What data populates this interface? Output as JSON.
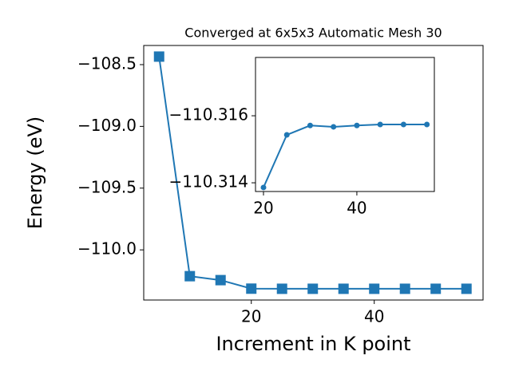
{
  "chart_data": [
    {
      "type": "line",
      "title": "Converged at 6x5x3 Automatic Mesh 30",
      "x_label": "Increment in K point",
      "y_label": "Energy (eV)",
      "marker": "square",
      "x": [
        5,
        10,
        15,
        20,
        25,
        30,
        35,
        40,
        45,
        50,
        55
      ],
      "series": [
        {
          "color": "#1f77b4",
          "values": [
            -108.435,
            -110.213,
            -110.245,
            -110.314,
            -110.315,
            -110.315,
            -110.315,
            -110.315,
            -110.315,
            -110.315,
            -110.315
          ]
        }
      ],
      "xlim": [
        2.5,
        57.7
      ],
      "ylim": [
        -110.406,
        -108.345
      ],
      "xticks": [
        20,
        40
      ],
      "yticks": [
        {
          "value": -108.5,
          "label": "−108.5"
        },
        {
          "value": -109.0,
          "label": "−109.0"
        },
        {
          "value": -109.5,
          "label": "−109.5"
        },
        {
          "value": -110.0,
          "label": "−110.0"
        }
      ]
    },
    {
      "type": "line",
      "marker": "circle",
      "x": [
        20,
        25,
        30,
        35,
        40,
        45,
        50,
        55
      ],
      "series": [
        {
          "color": "#1f77b4",
          "values": [
            -110.31386,
            -110.31543,
            -110.31571,
            -110.31567,
            -110.31571,
            -110.31574,
            -110.31574,
            -110.31574
          ]
        }
      ],
      "xlim": [
        18.29,
        56.6
      ],
      "ylim": [
        -110.31374,
        -110.31774
      ],
      "xticks": [
        20,
        40
      ],
      "yticks": [
        {
          "value": -110.316,
          "label": "−110.316"
        },
        {
          "value": -110.314,
          "label": "−110.314"
        }
      ]
    }
  ]
}
